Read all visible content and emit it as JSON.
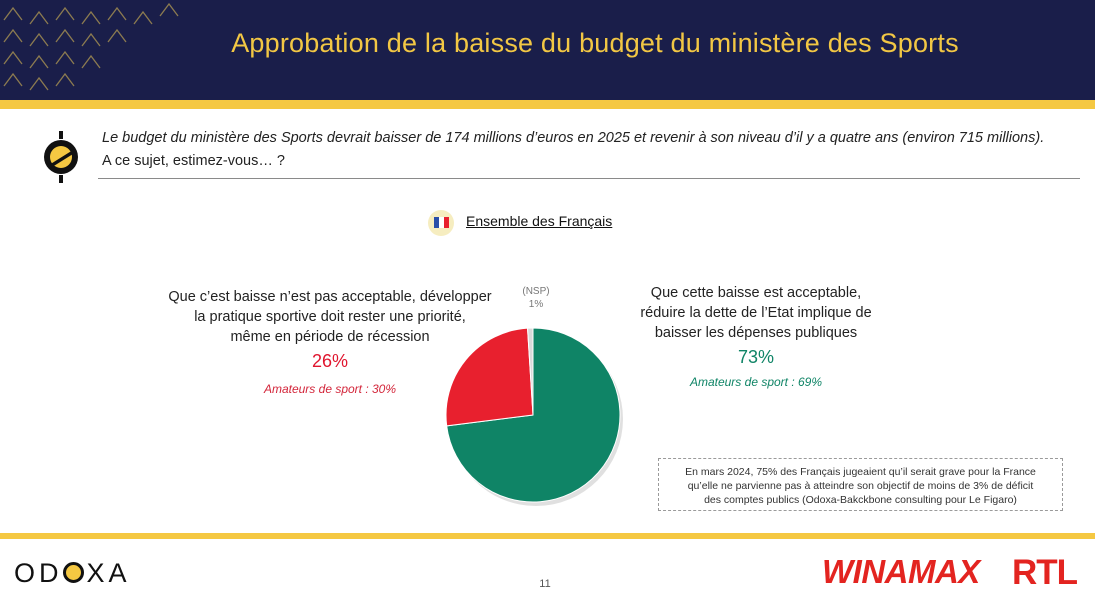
{
  "header": {
    "title": "Approbation de la baisse du budget du ministère des Sports"
  },
  "question": {
    "line1": "Le budget du ministère des Sports devrait baisser de 174 millions d’euros en 2025 et revenir à son niveau d’il y a quatre ans (environ 715 millions).",
    "line2": "A ce sujet, estimez-vous… ?"
  },
  "group_label": "Ensemble des Français",
  "chart_data": {
    "type": "pie",
    "slices": [
      {
        "label": "Que cette baisse est acceptable, réduire la dette de l’Etat implique de baisser les dépenses publiques",
        "value": 73,
        "value_label": "73%",
        "sub_label": "Amateurs de sport : 69%",
        "color": "#0f8466"
      },
      {
        "label": "Que c’est baisse n’est pas acceptable, développer la pratique sportive doit rester une priorité, même en période de récession",
        "value": 26,
        "value_label": "26%",
        "sub_label": "Amateurs de sport : 30%",
        "color": "#e8202e"
      },
      {
        "label": "(NSP)",
        "value": 1,
        "value_label": "1%",
        "color": "#d9d9d9"
      }
    ]
  },
  "labels": {
    "left_lines": [
      "Que c’est baisse n’est pas acceptable, développer",
      "la pratique sportive doit rester une priorité,",
      "même en période de récession"
    ],
    "left_pct": "26%",
    "left_sub": "Amateurs de sport : 30%",
    "right_lines": [
      "Que cette baisse est acceptable,",
      "réduire la dette de l’Etat implique de",
      "baisser les dépenses publiques"
    ],
    "right_pct": "73%",
    "right_sub": "Amateurs de sport : 69%",
    "nsp_name": "(NSP)",
    "nsp_pct": "1%"
  },
  "note": {
    "line1": "En mars 2024, 75% des Français jugeaient qu’il serait grave pour la France",
    "line2": "qu’elle ne parvienne pas à atteindre son objectif de moins de 3% de déficit",
    "line3": "des comptes publics (Odoxa-Bakckbone consulting pour Le Figaro)"
  },
  "footer": {
    "odoxa_before": "OD",
    "odoxa_after": "XA",
    "page_number": "11",
    "winamax": "WINAMAX",
    "rtl": "RTL"
  },
  "colors": {
    "navy": "#1a1e4a",
    "gold": "#f5c842",
    "green": "#0f8466",
    "red": "#e8202e"
  },
  "icons": [
    "question-logo-icon",
    "france-flag-icon"
  ]
}
